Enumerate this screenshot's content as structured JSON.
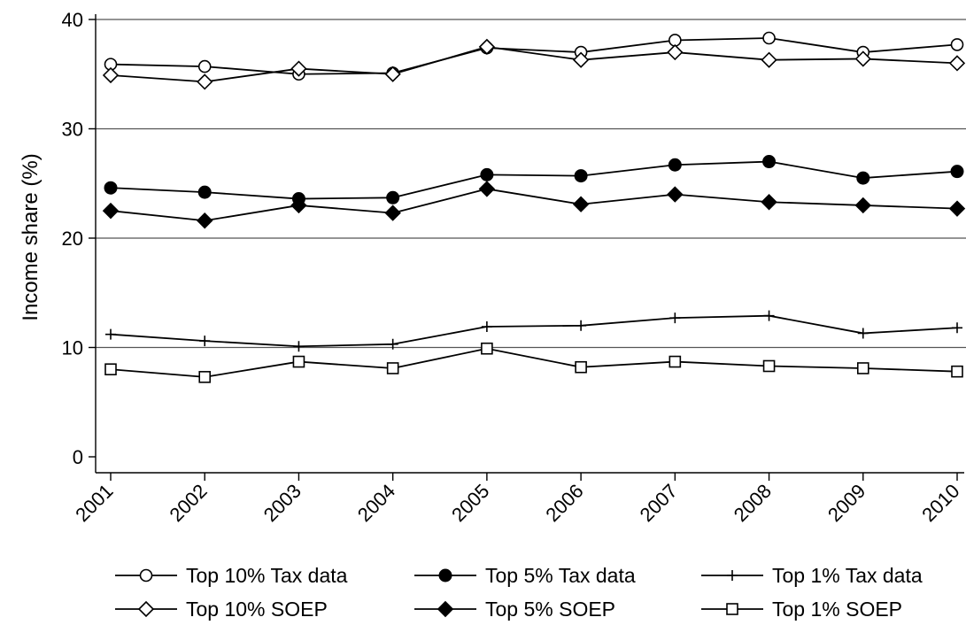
{
  "chart_data": {
    "type": "line",
    "title": "",
    "xlabel": "",
    "ylabel": "Income share (%)",
    "categories": [
      "2001",
      "2002",
      "2003",
      "2004",
      "2005",
      "2006",
      "2007",
      "2008",
      "2009",
      "2010"
    ],
    "ylim": [
      0,
      40
    ],
    "yticks": [
      "0",
      "10",
      "20",
      "30",
      "40"
    ],
    "grid": "horizontal",
    "legend_position": "bottom",
    "series": [
      {
        "name": "Top 10% Tax data",
        "marker": "circle-open",
        "values": [
          35.9,
          35.7,
          35.0,
          35.1,
          37.4,
          37.0,
          38.1,
          38.3,
          37.0,
          37.7
        ]
      },
      {
        "name": "Top 5% Tax data",
        "marker": "circle-filled",
        "values": [
          24.6,
          24.2,
          23.6,
          23.7,
          25.8,
          25.7,
          26.7,
          27.0,
          25.5,
          26.1
        ]
      },
      {
        "name": "Top 1% Tax data",
        "marker": "plus",
        "values": [
          11.2,
          10.6,
          10.1,
          10.3,
          11.9,
          12.0,
          12.7,
          12.9,
          11.3,
          11.8
        ]
      },
      {
        "name": "Top 10% SOEP",
        "marker": "diamond-open",
        "values": [
          34.9,
          34.3,
          35.5,
          35.0,
          37.5,
          36.3,
          37.0,
          36.3,
          36.4,
          36.0
        ]
      },
      {
        "name": "Top 5% SOEP",
        "marker": "diamond-filled",
        "values": [
          22.5,
          21.6,
          23.0,
          22.3,
          24.5,
          23.1,
          24.0,
          23.3,
          23.0,
          22.7
        ]
      },
      {
        "name": "Top 1% SOEP",
        "marker": "square-open",
        "values": [
          8.0,
          7.3,
          8.7,
          8.1,
          9.9,
          8.2,
          8.7,
          8.3,
          8.1,
          7.8
        ]
      }
    ],
    "colors": {
      "line": "#000000",
      "grid": "#555555",
      "background": "#ffffff"
    }
  }
}
